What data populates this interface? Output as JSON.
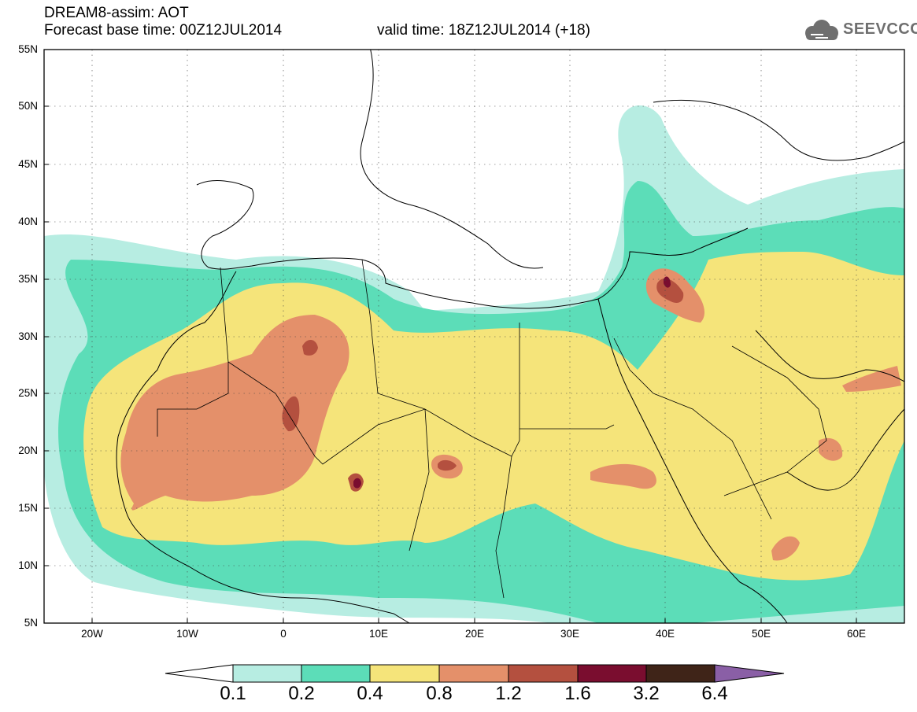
{
  "header": {
    "line1": "DREAM8-assim: AOT",
    "line2": "Forecast base time: 00Z12JUL2014",
    "line2_valid": "valid time: 18Z12JUL2014 (+18)",
    "logo_text": "SEEVCCC",
    "logo_icon": "cloud-icon"
  },
  "map": {
    "lat_labels": [
      "55N",
      "50N",
      "45N",
      "40N",
      "35N",
      "30N",
      "25N",
      "20N",
      "15N",
      "10N",
      "5N"
    ],
    "lon_labels": [
      "20W",
      "10W",
      "0",
      "10E",
      "20E",
      "30E",
      "40E",
      "50E",
      "60E"
    ],
    "colors": {
      "c1": "#b7ede2",
      "c2": "#5cddb8",
      "c3": "#f5e47a",
      "c4": "#e4906a",
      "c5": "#b4503f",
      "c6": "#7a0d2f",
      "c7": "#3f2418",
      "c8": "#8a5fa6"
    }
  },
  "colorbar": {
    "labels": [
      "0.1",
      "0.2",
      "0.4",
      "0.8",
      "1.2",
      "1.6",
      "3.2",
      "6.4"
    ],
    "colors": [
      "#b7ede2",
      "#5cddb8",
      "#f5e47a",
      "#e4906a",
      "#b4503f",
      "#7a0d2f",
      "#3f2418"
    ],
    "over_color": "#8a5fa6",
    "under_color": "#ffffff"
  }
}
